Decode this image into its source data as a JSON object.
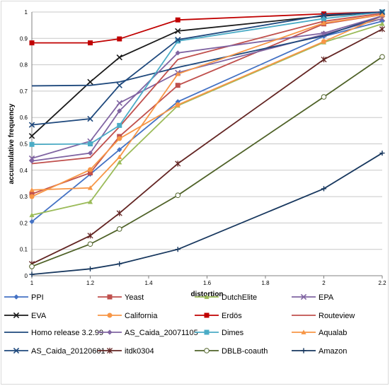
{
  "chart_data": {
    "type": "line",
    "title": "",
    "xlabel": "distortion",
    "ylabel": "accumulative frequency",
    "xlim": [
      1,
      2.2
    ],
    "ylim": [
      0,
      1
    ],
    "x_ticks": [
      "1",
      "1.2",
      "1.4",
      "1.6",
      "1.8",
      "2",
      "2.2"
    ],
    "y_ticks": [
      "0",
      "0.1",
      "0.2",
      "0.3",
      "0.4",
      "0.5",
      "0.6",
      "0.7",
      "0.8",
      "0.9",
      "1"
    ],
    "grid": "horizontal",
    "legend_position": "bottom",
    "x": [
      1,
      1.2,
      1.3,
      1.5,
      2,
      2.2
    ],
    "series": [
      {
        "name": "PPI",
        "color": "#4472c4",
        "marker": "diamond",
        "values": [
          0.205,
          0.385,
          0.478,
          0.66,
          0.908,
          0.965
        ]
      },
      {
        "name": "Yeast",
        "color": "#c0504d",
        "marker": "square",
        "values": [
          0.31,
          0.39,
          0.528,
          0.722,
          0.955,
          0.99
        ]
      },
      {
        "name": "DutchElite",
        "color": "#9bbb59",
        "marker": "triangle",
        "values": [
          0.23,
          0.28,
          0.43,
          0.645,
          0.885,
          0.955
        ]
      },
      {
        "name": "EPA",
        "color": "#8064a2",
        "marker": "x",
        "values": [
          0.445,
          0.51,
          0.655,
          0.77,
          0.915,
          0.975
        ]
      },
      {
        "name": "EVA",
        "color": "#1a1a1a",
        "marker": "x",
        "values": [
          0.53,
          0.735,
          0.828,
          0.928,
          0.985,
          1.0
        ]
      },
      {
        "name": "California",
        "color": "#f79646",
        "marker": "circle",
        "values": [
          0.3,
          0.402,
          0.52,
          0.648,
          0.888,
          0.985
        ]
      },
      {
        "name": "Erdös",
        "color": "#c00000",
        "marker": "square",
        "values": [
          0.883,
          0.883,
          0.898,
          0.97,
          0.993,
          1.0
        ]
      },
      {
        "name": "Routeview",
        "color": "#c0504d",
        "marker": "none",
        "values": [
          0.425,
          0.448,
          0.565,
          0.82,
          0.965,
          0.995
        ]
      },
      {
        "name": "Homo release 3.2.99",
        "color": "#1f497d",
        "marker": "none",
        "values": [
          0.72,
          0.722,
          0.735,
          0.79,
          0.91,
          0.985
        ]
      },
      {
        "name": "AS_Caida_20071105",
        "color": "#8064a2",
        "marker": "diamond",
        "values": [
          0.435,
          0.465,
          0.625,
          0.845,
          0.92,
          0.985
        ]
      },
      {
        "name": "Dimes",
        "color": "#4bacc6",
        "marker": "square",
        "values": [
          0.498,
          0.5,
          0.57,
          0.89,
          0.975,
          1.0
        ]
      },
      {
        "name": "Aqualab",
        "color": "#f79646",
        "marker": "triangle",
        "values": [
          0.325,
          0.333,
          0.45,
          0.765,
          0.958,
          0.99
        ]
      },
      {
        "name": "AS_Caida_20120601",
        "color": "#1f497d",
        "marker": "x",
        "values": [
          0.572,
          0.595,
          0.722,
          0.895,
          0.988,
          1.0
        ]
      },
      {
        "name": "itdk0304",
        "color": "#632523",
        "marker": "star",
        "values": [
          0.045,
          0.152,
          0.237,
          0.425,
          0.82,
          0.935
        ]
      },
      {
        "name": "DBLB-coauth",
        "color": "#4f6228",
        "marker": "circle",
        "values": [
          0.035,
          0.12,
          0.177,
          0.305,
          0.678,
          0.83
        ]
      },
      {
        "name": "Amazon",
        "color": "#17375e",
        "marker": "plus",
        "values": [
          0.005,
          0.026,
          0.045,
          0.1,
          0.33,
          0.465
        ]
      }
    ]
  }
}
